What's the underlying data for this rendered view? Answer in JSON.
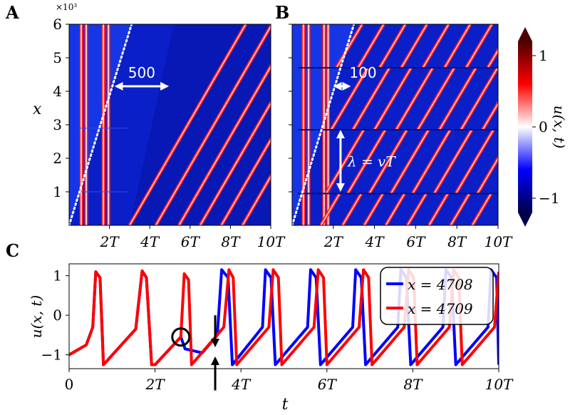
{
  "chart_data": [
    {
      "panel": "A",
      "type": "heatmap",
      "title": "",
      "xlabel": "",
      "ylabel": "x",
      "y_multiplier_label": "×10³",
      "xlim": [
        0,
        10
      ],
      "ylim": [
        0,
        6
      ],
      "x_unit": "T",
      "x_ticks": [
        2,
        4,
        6,
        8,
        10
      ],
      "x_tick_labels": [
        "2T",
        "4T",
        "6T",
        "8T",
        "10T"
      ],
      "y_ticks": [
        1,
        2,
        3,
        4,
        5,
        6
      ],
      "y_tick_labels": [
        "1",
        "2",
        "3",
        "4",
        "5",
        "6"
      ],
      "vertical_stripes_t": [
        0.6,
        0.85,
        1.7,
        1.95
      ],
      "diagonal_wave_start_t": [
        4.0,
        5.3,
        6.45,
        7.5,
        8.55,
        9.6
      ],
      "wave_slope_T_per_1000x": 0.16,
      "domain_breaks_x": [
        1.0,
        2.9
      ],
      "front_line": {
        "t": [
          0,
          3.1
        ],
        "x": [
          0,
          6.0
        ],
        "style": "white dotted"
      },
      "annotation": {
        "text": "500",
        "x_level": 4.15,
        "t_range": [
          2.25,
          4.95
        ]
      }
    },
    {
      "panel": "B",
      "type": "heatmap",
      "title": "",
      "xlabel": "",
      "ylabel": "",
      "xlim": [
        0,
        10
      ],
      "ylim": [
        0,
        6
      ],
      "x_unit": "T",
      "x_ticks": [
        2,
        4,
        6,
        8,
        10
      ],
      "x_tick_labels": [
        "2T",
        "4T",
        "6T",
        "8T",
        "10T"
      ],
      "y_ticks": [
        1,
        2,
        3,
        4,
        5,
        6
      ],
      "vertical_stripes_t": [
        0.55,
        0.8,
        1.55,
        1.75
      ],
      "band_edges_x": [
        0,
        0.95,
        2.85,
        4.7,
        6.0
      ],
      "wave_start_t": [
        [
          2.35,
          3.4,
          4.45,
          5.5,
          6.55,
          7.6,
          8.65,
          9.7
        ],
        [
          2.35,
          3.4,
          4.45,
          5.5,
          6.55,
          7.6,
          8.65,
          9.7
        ],
        [
          2.35,
          3.4,
          4.45,
          5.5,
          6.55,
          7.6,
          8.65,
          9.7
        ],
        [
          2.35,
          3.4,
          4.45,
          5.5,
          6.55,
          7.6,
          8.65,
          9.7
        ]
      ],
      "wave_slope_T_per_1000x": 0.16,
      "front_line": {
        "t": [
          0,
          3.0
        ],
        "x": [
          0,
          6.0
        ],
        "style": "white dotted"
      },
      "annotations": [
        {
          "text": "100",
          "x_level": 4.15,
          "t_range": [
            2.1,
            2.75
          ]
        },
        {
          "text": "λ = vT",
          "t_level": 2.35,
          "x_range": [
            1.0,
            2.85
          ]
        }
      ]
    },
    {
      "panel": "colorbar",
      "type": "colorbar",
      "label": "u(x, t)",
      "range": [
        -1.2,
        1.2
      ],
      "ticks": [
        -1,
        0,
        1
      ],
      "tick_labels": [
        "−1",
        "0",
        "1"
      ],
      "colors": [
        "#00004a",
        "#0000ff",
        "#ffffff",
        "#ff0000",
        "#4d0000"
      ],
      "extend": "both"
    },
    {
      "panel": "C",
      "type": "line",
      "title": "",
      "xlabel": "t",
      "ylabel": "u(x, t)",
      "xlim": [
        0,
        10
      ],
      "ylim": [
        -1.35,
        1.3
      ],
      "x_ticks": [
        0,
        2,
        4,
        6,
        8,
        10
      ],
      "x_tick_labels": [
        "0",
        "2T",
        "4T",
        "6T",
        "8T",
        "10T"
      ],
      "y_ticks": [
        -1,
        0,
        1
      ],
      "y_tick_labels": [
        "−1",
        "0",
        "1"
      ],
      "legend_position": "top-right",
      "series": [
        {
          "name": "x = 4708",
          "color": "#0000ff",
          "t": [
            0,
            0.4,
            0.55,
            0.62,
            0.72,
            0.8,
            1.55,
            1.7,
            1.8,
            1.92,
            2.0,
            2.6,
            2.7,
            3.1,
            3.45,
            3.55,
            3.7,
            3.8,
            4.5,
            4.57,
            4.7,
            4.8,
            5.55,
            5.62,
            5.75,
            5.85,
            6.6,
            6.67,
            6.8,
            6.9,
            7.65,
            7.72,
            7.85,
            7.95,
            8.7,
            8.77,
            8.9,
            9.0,
            9.75,
            9.82,
            9.95,
            10.0
          ],
          "u": [
            -1.0,
            -0.75,
            -0.3,
            1.1,
            0.95,
            -1.25,
            -0.35,
            1.12,
            0.95,
            -1.25,
            -1.25,
            -0.55,
            -0.85,
            -0.95,
            -0.5,
            1.15,
            0.95,
            -1.25,
            -0.3,
            1.15,
            0.95,
            -1.25,
            -0.3,
            1.15,
            0.95,
            -1.25,
            -0.3,
            1.15,
            0.95,
            -1.25,
            -0.3,
            1.15,
            0.95,
            -1.25,
            -0.3,
            1.15,
            0.95,
            -1.25,
            -0.3,
            1.15,
            0.95,
            -1.25
          ]
        },
        {
          "name": "x = 4709",
          "color": "#ff0000",
          "t": [
            0,
            0.4,
            0.55,
            0.62,
            0.72,
            0.8,
            1.55,
            1.7,
            1.8,
            1.92,
            2.0,
            2.6,
            2.68,
            2.78,
            2.85,
            3.6,
            3.72,
            3.82,
            3.9,
            4.65,
            4.75,
            4.87,
            4.95,
            5.7,
            5.8,
            5.92,
            6.0,
            6.75,
            6.85,
            6.97,
            7.05,
            7.8,
            7.9,
            8.02,
            8.1,
            8.85,
            8.95,
            9.07,
            9.15,
            9.9,
            10.0
          ],
          "u": [
            -1.0,
            -0.75,
            -0.3,
            1.1,
            0.95,
            -1.25,
            -0.35,
            1.12,
            0.95,
            -1.25,
            -1.25,
            -0.55,
            1.05,
            0.9,
            -1.25,
            -0.3,
            1.15,
            0.95,
            -1.25,
            -0.3,
            1.15,
            0.95,
            -1.25,
            -0.3,
            1.15,
            0.95,
            -1.25,
            -0.3,
            1.15,
            0.95,
            -1.25,
            -0.3,
            1.15,
            0.95,
            -1.25,
            -0.3,
            1.15,
            0.95,
            -1.25,
            -0.3,
            1.1
          ]
        }
      ],
      "markers": [
        {
          "kind": "circle",
          "t": 2.6,
          "u": -0.55
        },
        {
          "kind": "arrow-down",
          "t": 3.4,
          "u_from": 0.0,
          "u_to": -0.7
        },
        {
          "kind": "arrow-up",
          "t": 3.4,
          "u_from": -1.9,
          "u_to": -1.15
        }
      ]
    }
  ],
  "panel_labels": [
    "A",
    "B",
    "C"
  ]
}
